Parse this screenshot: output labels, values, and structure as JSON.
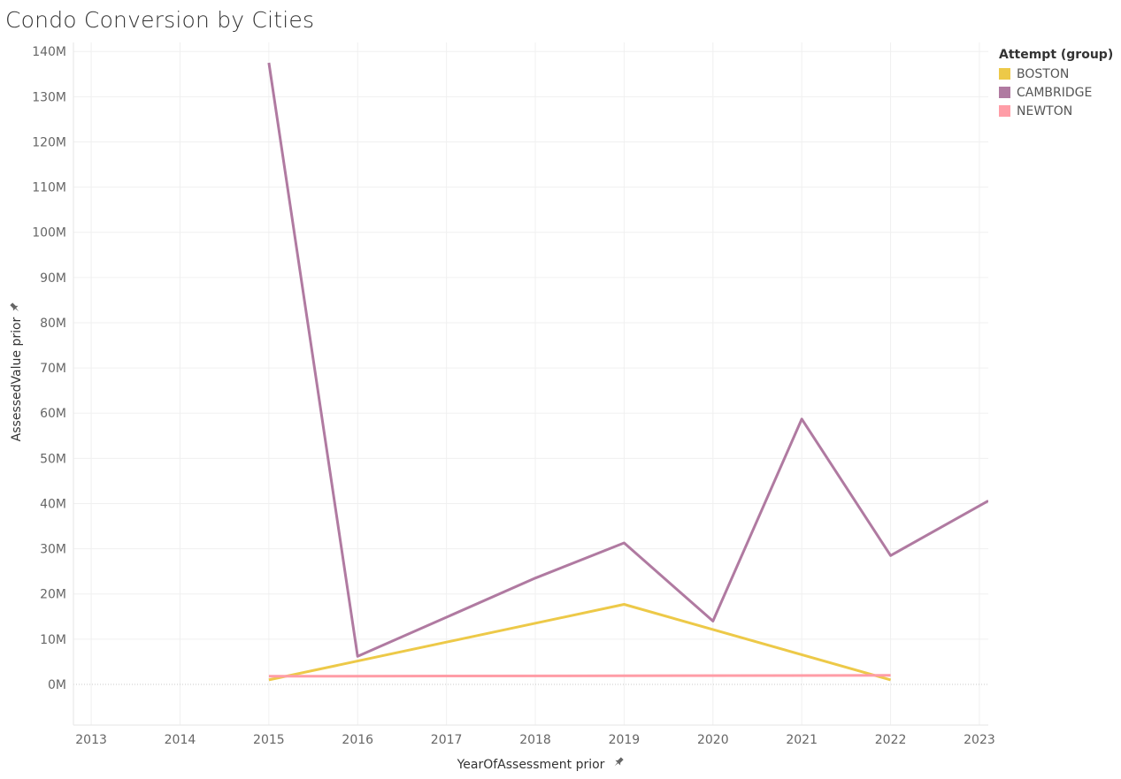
{
  "chart_data": {
    "type": "line",
    "title": "Condo Conversion by Cities",
    "xlabel": "YearOfAssessment prior",
    "ylabel": "AssessedValue prior",
    "x_ticks": [
      2013,
      2014,
      2015,
      2016,
      2017,
      2018,
      2019,
      2020,
      2021,
      2022,
      2023
    ],
    "xlim": [
      2012.8,
      2023.1
    ],
    "y_ticks": [
      0,
      10,
      20,
      30,
      40,
      50,
      60,
      70,
      80,
      90,
      100,
      110,
      120,
      130,
      140
    ],
    "y_tick_labels": [
      "0M",
      "10M",
      "20M",
      "30M",
      "40M",
      "50M",
      "60M",
      "70M",
      "80M",
      "90M",
      "100M",
      "110M",
      "120M",
      "130M",
      "140M"
    ],
    "ylim": [
      -9,
      142
    ],
    "y_unit": "M",
    "grid": true,
    "legend": {
      "title": "Attempt (group)",
      "placement": "top-right"
    },
    "series": [
      {
        "name": "BOSTON",
        "color": "#EDC948",
        "x": [
          2015,
          2019,
          2022
        ],
        "y": [
          1.0,
          17.7,
          1.0
        ]
      },
      {
        "name": "CAMBRIDGE",
        "color": "#B07AA1",
        "x": [
          2015,
          2016,
          2018,
          2019,
          2020,
          2021,
          2022,
          2023.1
        ],
        "y": [
          137.5,
          6.2,
          23.5,
          31.3,
          14.0,
          58.7,
          28.5,
          40.6
        ]
      },
      {
        "name": "NEWTON",
        "color": "#FF9DA7",
        "x": [
          2015,
          2022
        ],
        "y": [
          1.8,
          2.0
        ]
      }
    ]
  }
}
